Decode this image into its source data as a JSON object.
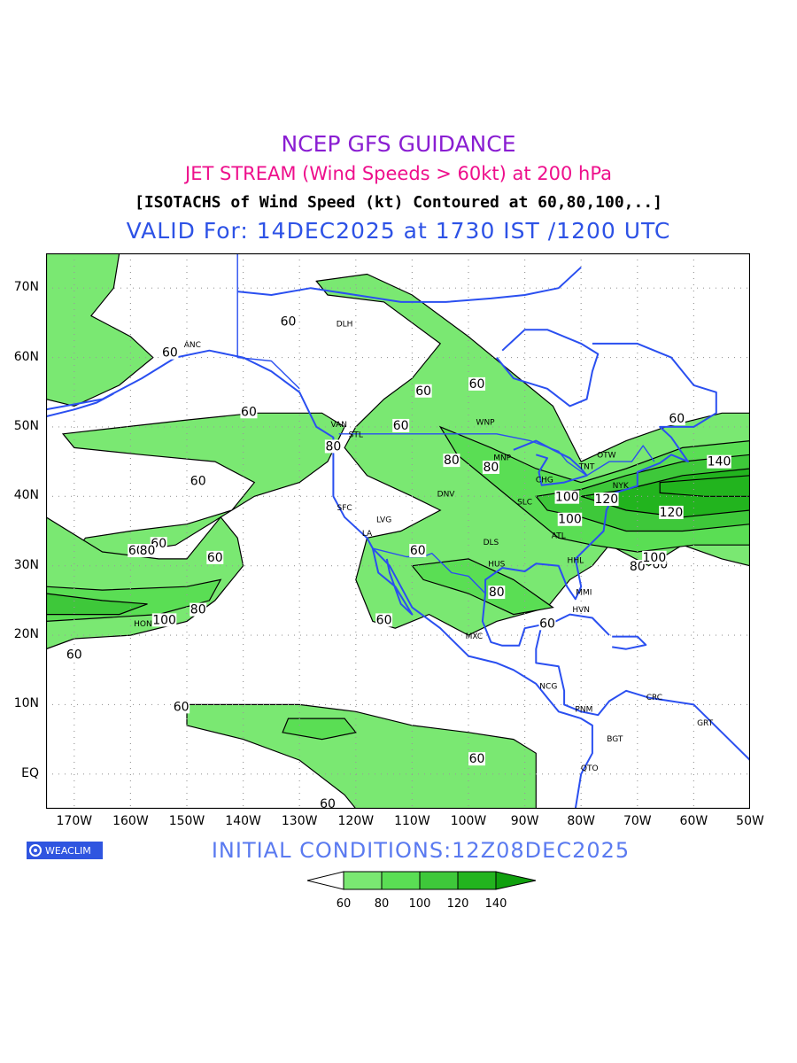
{
  "titles": {
    "line1": "NCEP GFS GUIDANCE",
    "line2": "JET STREAM (Wind Speeds > 60kt) at 200 hPa",
    "line3": "[ISOTACHS of Wind Speed (kt) Contoured at 60,80,100,..]",
    "line4": "VALID For: 14DEC2025 at 1730 IST /1200 UTC"
  },
  "axes": {
    "x_ticks": [
      "170W",
      "160W",
      "150W",
      "140W",
      "130W",
      "120W",
      "110W",
      "100W",
      "90W",
      "80W",
      "70W",
      "60W",
      "50W"
    ],
    "y_ticks": [
      "70N",
      "60N",
      "50N",
      "40N",
      "30N",
      "20N",
      "10N",
      "EQ"
    ],
    "lon_range": [
      -175,
      -50
    ],
    "lat_range": [
      -5,
      75
    ]
  },
  "stations": [
    "ANC",
    "DLH",
    "VAN",
    "STL",
    "WNP",
    "MNP",
    "DNV",
    "SFC",
    "LVG",
    "LA",
    "SLC",
    "CHG",
    "TNT",
    "OTW",
    "NYK",
    "ATL",
    "DLS",
    "HUS",
    "HHL",
    "MMI",
    "HVN",
    "MXC",
    "NCG",
    "PNM",
    "BGT",
    "QTO",
    "CRC",
    "GRT",
    "HON"
  ],
  "contour_labels": [
    "60",
    "80",
    "100",
    "120",
    "140"
  ],
  "footer": {
    "logo": "WEACLIM",
    "initial": "INITIAL CONDITIONS:12Z08DEC2025"
  },
  "legend": {
    "labels": [
      "60",
      "80",
      "100",
      "120",
      "140"
    ],
    "colors": [
      "#ffffff",
      "#7ae872",
      "#5ade54",
      "#3ec83a",
      "#22b41e",
      "#10a00e"
    ]
  },
  "colors": {
    "fill60": "#7ae872",
    "fill80": "#5ade54",
    "fill100": "#3ec83a",
    "fill120": "#22b41e",
    "coast": "#2a4ff0"
  },
  "chart_data": {
    "type": "map",
    "variable": "wind speed (kt) at 200 hPa",
    "isotach_levels": [
      60,
      80,
      100,
      120,
      140
    ],
    "grid": true
  }
}
